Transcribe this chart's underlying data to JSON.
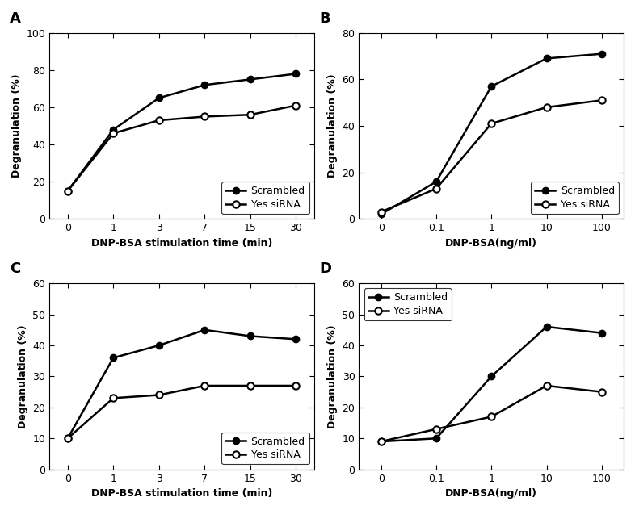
{
  "A": {
    "label": "A",
    "x_positions": [
      0,
      1,
      2,
      3,
      4,
      5
    ],
    "scrambled": [
      15,
      48,
      65,
      72,
      75,
      78
    ],
    "sirna": [
      15,
      46,
      53,
      55,
      56,
      61
    ],
    "xlabel": "DNP-BSA stimulation time (min)",
    "ylabel": "Degranulation (%)",
    "ylim": [
      0,
      100
    ],
    "yticks": [
      0,
      20,
      40,
      60,
      80,
      100
    ],
    "xtick_labels": [
      "0",
      "1",
      "3",
      "7",
      "15",
      "30"
    ],
    "legend_loc": "lower right",
    "xlim": [
      -0.4,
      5.4
    ]
  },
  "B": {
    "label": "B",
    "x_positions": [
      0,
      1,
      2,
      3,
      4
    ],
    "scrambled": [
      2,
      16,
      57,
      69,
      71
    ],
    "sirna": [
      3,
      13,
      41,
      48,
      51
    ],
    "xlabel": "DNP-BSA(ng/ml)",
    "ylabel": "Degranulation (%)",
    "ylim": [
      0,
      80
    ],
    "yticks": [
      0,
      20,
      40,
      60,
      80
    ],
    "xtick_labels": [
      "0",
      "0.1",
      "1",
      "10",
      "100"
    ],
    "legend_loc": "lower right",
    "xlim": [
      -0.4,
      4.4
    ]
  },
  "C": {
    "label": "C",
    "x_positions": [
      0,
      1,
      2,
      3,
      4,
      5
    ],
    "scrambled": [
      10,
      36,
      40,
      45,
      43,
      42
    ],
    "sirna": [
      10,
      23,
      24,
      27,
      27,
      27
    ],
    "xlabel": "DNP-BSA stimulation time (min)",
    "ylabel": "Degranulation (%)",
    "ylim": [
      0,
      60
    ],
    "yticks": [
      0,
      10,
      20,
      30,
      40,
      50,
      60
    ],
    "xtick_labels": [
      "0",
      "1",
      "3",
      "7",
      "15",
      "30"
    ],
    "legend_loc": "lower right",
    "xlim": [
      -0.4,
      5.4
    ]
  },
  "D": {
    "label": "D",
    "x_positions": [
      0,
      1,
      2,
      3,
      4
    ],
    "scrambled": [
      9,
      10,
      30,
      46,
      44
    ],
    "sirna": [
      9,
      13,
      17,
      27,
      25
    ],
    "xlabel": "DNP-BSA(ng/ml)",
    "ylabel": "Degranulation (%)",
    "ylim": [
      0,
      60
    ],
    "yticks": [
      0,
      10,
      20,
      30,
      40,
      50,
      60
    ],
    "xtick_labels": [
      "0",
      "0.1",
      "1",
      "10",
      "100"
    ],
    "legend_loc": "upper left",
    "xlim": [
      -0.4,
      4.4
    ]
  },
  "line_color": "#000000",
  "markersize": 6,
  "linewidth": 1.8,
  "legend_scrambled": "Scrambled",
  "legend_sirna": "Yes siRNA",
  "font_size_label": 9,
  "font_size_tick": 9,
  "font_size_panel": 13,
  "font_size_legend": 9
}
